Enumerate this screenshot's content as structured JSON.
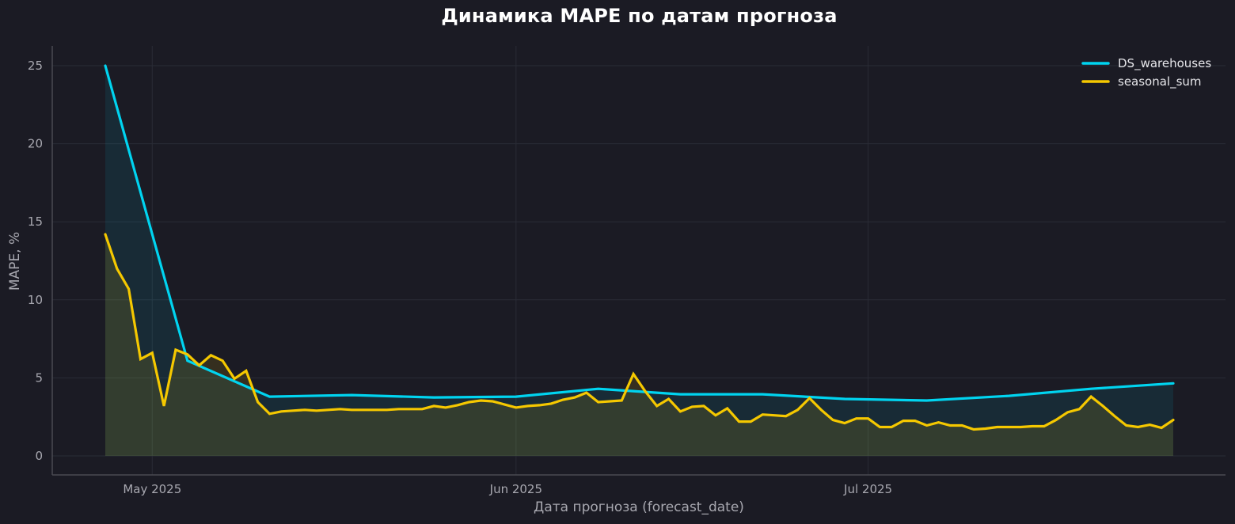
{
  "chart_data": {
    "type": "line",
    "title": "Динамика MAPE по датам прогноза",
    "xlabel": "Дата прогноза (forecast_date)",
    "ylabel": "MAPE, %",
    "ylim": [
      -1.2,
      26.3
    ],
    "yticks": [
      0,
      5,
      10,
      15,
      20,
      25
    ],
    "xticks": [
      {
        "label": "May 2025",
        "date": "2025-05-01"
      },
      {
        "label": "Jun 2025",
        "date": "2025-06-01"
      },
      {
        "label": "Jul 2025",
        "date": "2025-07-01"
      }
    ],
    "grid": true,
    "legend_position": "upper right",
    "x_start": "2025-04-27",
    "x_end": "2025-07-27",
    "series": [
      {
        "name": "DS_warehouses",
        "color": "#00d4f0",
        "fill": "#1a2a36",
        "points": [
          {
            "date": "2025-04-27",
            "value": 25.0
          },
          {
            "date": "2025-05-04",
            "value": 6.1
          },
          {
            "date": "2025-05-11",
            "value": 3.8
          },
          {
            "date": "2025-05-18",
            "value": 3.9
          },
          {
            "date": "2025-05-25",
            "value": 3.75
          },
          {
            "date": "2025-06-01",
            "value": 3.8
          },
          {
            "date": "2025-06-08",
            "value": 4.3
          },
          {
            "date": "2025-06-15",
            "value": 3.95
          },
          {
            "date": "2025-06-22",
            "value": 3.95
          },
          {
            "date": "2025-06-29",
            "value": 3.65
          },
          {
            "date": "2025-07-06",
            "value": 3.55
          },
          {
            "date": "2025-07-13",
            "value": 3.85
          },
          {
            "date": "2025-07-20",
            "value": 4.3
          },
          {
            "date": "2025-07-27",
            "value": 4.65
          }
        ]
      },
      {
        "name": "seasonal_sum",
        "color": "#f5c800",
        "fill": "#2a3430",
        "daily_values": [
          14.2,
          12.0,
          10.7,
          6.2,
          6.6,
          3.2,
          6.8,
          6.5,
          5.8,
          6.45,
          6.1,
          4.95,
          5.45,
          3.45,
          2.7,
          2.85,
          2.9,
          2.95,
          2.9,
          2.95,
          3.0,
          2.95,
          2.95,
          2.95,
          2.95,
          3.0,
          3.0,
          3.0,
          3.2,
          3.1,
          3.25,
          3.45,
          3.55,
          3.5,
          3.3,
          3.1,
          3.2,
          3.25,
          3.35,
          3.6,
          3.75,
          4.05,
          3.45,
          3.5,
          3.55,
          5.25,
          4.15,
          3.2,
          3.65,
          2.85,
          3.15,
          3.2,
          2.6,
          3.05,
          2.2,
          2.2,
          2.65,
          2.6,
          2.55,
          2.95,
          3.7,
          2.95,
          2.3,
          2.1,
          2.4,
          2.4,
          1.85,
          1.85,
          2.25,
          2.25,
          1.95,
          2.15,
          1.95,
          1.95,
          1.7,
          1.75,
          1.85,
          1.85,
          1.85,
          1.9,
          1.9,
          2.3,
          2.8,
          3.0,
          3.8,
          3.2,
          2.55,
          1.95,
          1.85,
          2.0,
          1.8,
          2.3
        ]
      }
    ]
  },
  "legend": {
    "items": [
      {
        "label": "DS_warehouses",
        "color": "#00d4f0"
      },
      {
        "label": "seasonal_sum",
        "color": "#f5c800"
      }
    ]
  },
  "theme": {
    "background": "#1b1b24",
    "grid": "#2a2c36",
    "spine": "#4a4a52",
    "text": "#a8a8b0"
  }
}
